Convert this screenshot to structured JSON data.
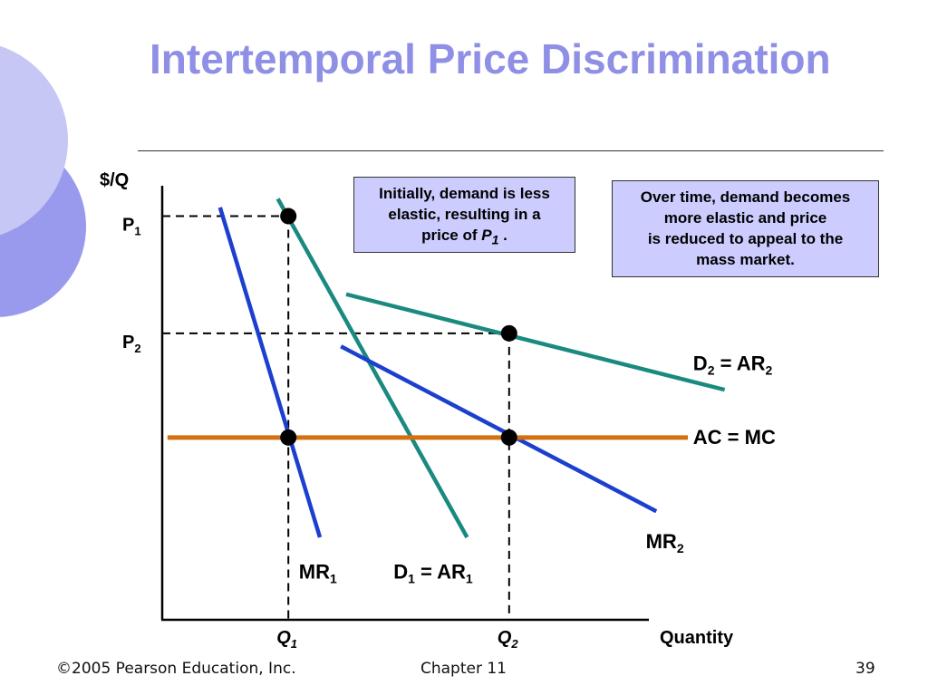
{
  "slide": {
    "title": "Intertemporal Price Discrimination",
    "footer": {
      "copyright": "©2005 Pearson Education, Inc.",
      "chapter": "Chapter 11",
      "page": "39"
    }
  },
  "colors": {
    "title": "#8f8fe6",
    "demand_curves": "#1a8a80",
    "mr_curves": "#1c3fd0",
    "cost_line": "#d4700f",
    "callout_bg": "#ccccff"
  },
  "callouts": {
    "initial": {
      "lines": [
        "Initially, demand is less",
        "elastic, resulting in a"
      ],
      "line3_prefix": "price of ",
      "line3_var": "P",
      "line3_sub": "1",
      "line3_suffix": " ."
    },
    "over_time": {
      "lines": [
        "Over time, demand becomes",
        "more elastic and price",
        "is reduced to appeal to the",
        "mass market."
      ]
    }
  },
  "chart_data": {
    "type": "line",
    "title": "",
    "xlabel": "Quantity",
    "ylabel": "$/Q",
    "xlim": [
      0,
      100
    ],
    "ylim": [
      0,
      100
    ],
    "x_ticks": [
      {
        "var": "Q",
        "sub": "1",
        "value": 24
      },
      {
        "var": "Q",
        "sub": "2",
        "value": 66
      }
    ],
    "y_ticks": [
      {
        "var": "P",
        "sub": "1",
        "value": 93
      },
      {
        "var": "P",
        "sub": "2",
        "value": 66
      }
    ],
    "series": [
      {
        "name": "MR1",
        "label_var": "MR",
        "label_sub": "1",
        "label_suffix": "",
        "role": "mr",
        "x": [
          11,
          30
        ],
        "y": [
          95,
          19
        ],
        "label_at": [
          26,
          11
        ]
      },
      {
        "name": "D1 = AR1",
        "label_var": "D",
        "label_sub": "1",
        "label_suffix": " = AR",
        "label_sub2": "1",
        "role": "demand",
        "x": [
          22,
          58
        ],
        "y": [
          97,
          19
        ],
        "label_at": [
          44,
          11
        ]
      },
      {
        "name": "D2 = AR2",
        "label_var": "D",
        "label_sub": "2",
        "label_suffix": " = AR",
        "label_sub2": "2",
        "role": "demand",
        "x": [
          35,
          107
        ],
        "y": [
          75,
          53
        ],
        "label_at": [
          101,
          59
        ]
      },
      {
        "name": "MR2",
        "label_var": "MR",
        "label_sub": "2",
        "label_suffix": "",
        "role": "mr",
        "x": [
          34,
          94
        ],
        "y": [
          63,
          25
        ],
        "label_at": [
          92,
          18
        ]
      },
      {
        "name": "AC = MC",
        "label_var": "AC = MC",
        "label_sub": "",
        "label_suffix": "",
        "role": "cost",
        "x": [
          1,
          100
        ],
        "y": [
          42,
          42
        ],
        "label_at": [
          101,
          42
        ]
      }
    ],
    "points": [
      {
        "x": 24,
        "y": 93
      },
      {
        "x": 66,
        "y": 66
      },
      {
        "x": 24,
        "y": 42
      },
      {
        "x": 66,
        "y": 42
      }
    ],
    "dashed_guides": [
      {
        "from": [
          0,
          93
        ],
        "to": [
          24,
          93
        ]
      },
      {
        "from": [
          24,
          93
        ],
        "to": [
          24,
          0
        ]
      },
      {
        "from": [
          0,
          66
        ],
        "to": [
          66,
          66
        ]
      },
      {
        "from": [
          66,
          66
        ],
        "to": [
          66,
          0
        ]
      }
    ]
  }
}
